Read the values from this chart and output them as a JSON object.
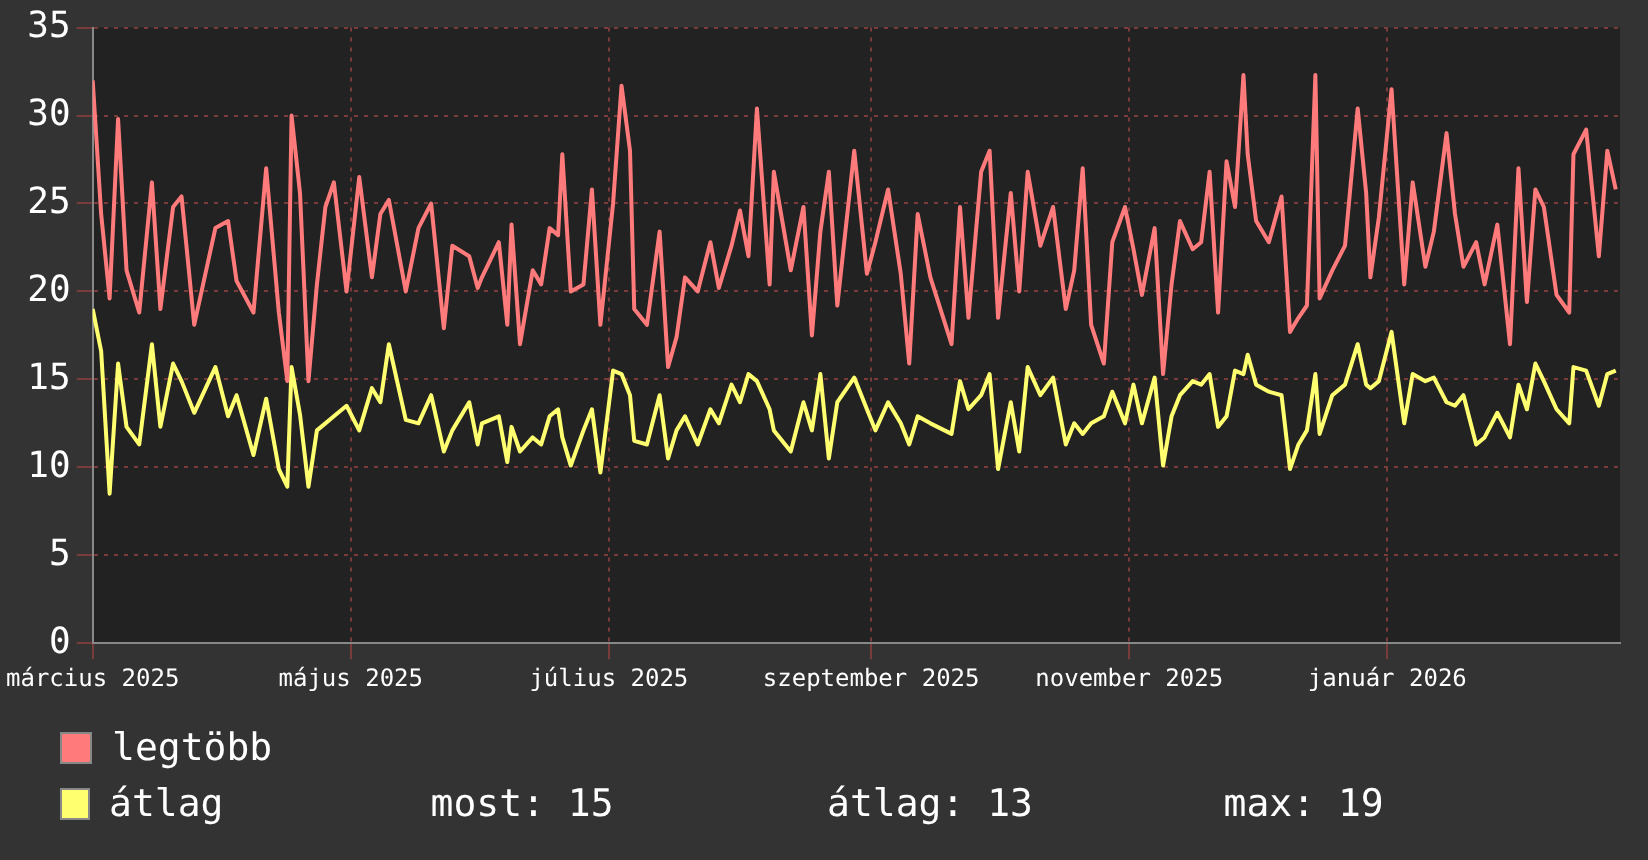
{
  "chart_data": {
    "type": "line",
    "legend": "bottom",
    "grid": true,
    "x": [
      "2025-03-01",
      "2025-03-03",
      "2025-03-05",
      "2025-03-07",
      "2025-03-09",
      "2025-03-12",
      "2025-03-15",
      "2025-03-17",
      "2025-03-20",
      "2025-03-22",
      "2025-03-25",
      "2025-03-30",
      "2025-04-02",
      "2025-04-04",
      "2025-04-08",
      "2025-04-11",
      "2025-04-14",
      "2025-04-16",
      "2025-04-17",
      "2025-04-19",
      "2025-04-21",
      "2025-04-23",
      "2025-04-25",
      "2025-04-27",
      "2025-04-30",
      "2025-05-03",
      "2025-05-06",
      "2025-05-08",
      "2025-05-10",
      "2025-05-14",
      "2025-05-17",
      "2025-05-20",
      "2025-05-23",
      "2025-05-25",
      "2025-05-29",
      "2025-05-31",
      "2025-06-01",
      "2025-06-05",
      "2025-06-07",
      "2025-06-08",
      "2025-06-10",
      "2025-06-13",
      "2025-06-15",
      "2025-06-17",
      "2025-06-19",
      "2025-06-20",
      "2025-06-22",
      "2025-06-25",
      "2025-06-27",
      "2025-06-29",
      "2025-07-02",
      "2025-07-04",
      "2025-07-06",
      "2025-07-07",
      "2025-07-10",
      "2025-07-13",
      "2025-07-15",
      "2025-07-17",
      "2025-07-19",
      "2025-07-22",
      "2025-07-25",
      "2025-07-27",
      "2025-07-30",
      "2025-08-01",
      "2025-08-03",
      "2025-08-05",
      "2025-08-08",
      "2025-08-09",
      "2025-08-13",
      "2025-08-16",
      "2025-08-18",
      "2025-08-20",
      "2025-08-22",
      "2025-08-24",
      "2025-08-28",
      "2025-08-31",
      "2025-09-02",
      "2025-09-05",
      "2025-09-08",
      "2025-09-10",
      "2025-09-12",
      "2025-09-15",
      "2025-09-20",
      "2025-09-22",
      "2025-09-24",
      "2025-09-27",
      "2025-09-29",
      "2025-10-01",
      "2025-10-04",
      "2025-10-06",
      "2025-10-08",
      "2025-10-11",
      "2025-10-14",
      "2025-10-17",
      "2025-10-19",
      "2025-10-21",
      "2025-10-23",
      "2025-10-26",
      "2025-10-28",
      "2025-10-31",
      "2025-11-02",
      "2025-11-04",
      "2025-11-07",
      "2025-11-09",
      "2025-11-11",
      "2025-11-13",
      "2025-11-16",
      "2025-11-18",
      "2025-11-20",
      "2025-11-22",
      "2025-11-24",
      "2025-11-26",
      "2025-11-28",
      "2025-11-29",
      "2025-12-01",
      "2025-12-04",
      "2025-12-07",
      "2025-12-09",
      "2025-12-11",
      "2025-12-13",
      "2025-12-15",
      "2025-12-16",
      "2025-12-19",
      "2025-12-22",
      "2025-12-25",
      "2025-12-27",
      "2025-12-28",
      "2025-12-30",
      "2026-01-02",
      "2026-01-05",
      "2026-01-07",
      "2026-01-10",
      "2026-01-12",
      "2026-01-15",
      "2026-01-17",
      "2026-01-19",
      "2026-01-22",
      "2026-01-24",
      "2026-01-27",
      "2026-01-30",
      "2026-02-01",
      "2026-02-03",
      "2026-02-05",
      "2026-02-07",
      "2026-02-10",
      "2026-02-13",
      "2026-02-14",
      "2026-02-17",
      "2026-02-20",
      "2026-02-22",
      "2026-02-24"
    ],
    "series": [
      {
        "name": "legtöbb",
        "color": "#ff7b7b",
        "values": [
          32,
          24.4,
          19.6,
          29.8,
          21.2,
          18.8,
          26.2,
          19,
          24.8,
          25.4,
          18.1,
          23.6,
          24,
          20.6,
          18.8,
          27,
          18.8,
          14.9,
          30,
          25.6,
          14.9,
          20.4,
          24.8,
          26.2,
          20,
          26.5,
          20.8,
          24.4,
          25.2,
          20,
          23.6,
          25,
          17.9,
          22.6,
          22,
          20.2,
          20.8,
          22.8,
          18.1,
          23.8,
          17,
          21.2,
          20.4,
          23.6,
          23.2,
          27.8,
          20,
          20.4,
          25.8,
          18.1,
          25,
          31.7,
          28,
          19,
          18.1,
          23.4,
          15.7,
          17.4,
          20.8,
          20,
          22.8,
          20.2,
          22.6,
          24.6,
          22,
          30.4,
          20.4,
          26.8,
          21.2,
          24.8,
          17.5,
          23.4,
          26.8,
          19.2,
          28,
          21,
          22.8,
          25.8,
          21,
          15.9,
          24.4,
          20.8,
          17,
          24.8,
          18.5,
          26.8,
          28,
          18.5,
          25.6,
          20,
          26.8,
          22.6,
          24.8,
          19,
          21.2,
          27,
          18.1,
          15.9,
          22.8,
          24.8,
          22.4,
          19.8,
          23.6,
          15.3,
          20.4,
          24,
          22.4,
          22.8,
          26.8,
          18.8,
          27.4,
          24.8,
          32.3,
          27.8,
          24,
          22.8,
          25.4,
          17.7,
          18.5,
          19.2,
          32.3,
          19.6,
          21.2,
          22.6,
          30.4,
          25.6,
          20.8,
          24.2,
          31.5,
          20.4,
          26.2,
          21.4,
          23.4,
          29,
          24.4,
          21.4,
          22.8,
          20.4,
          23.8,
          17,
          27,
          19.4,
          25.8,
          24.8,
          19.8,
          18.8,
          27.8,
          29.2,
          22,
          28,
          25.8
        ]
      },
      {
        "name": "átlag",
        "color": "#ffff70",
        "values": [
          19,
          16.6,
          8.5,
          15.9,
          12.3,
          11.3,
          17,
          12.3,
          15.9,
          14.9,
          13.1,
          15.7,
          12.9,
          14.1,
          10.7,
          13.9,
          9.9,
          8.9,
          15.7,
          13,
          8.9,
          12.1,
          12.5,
          12.9,
          13.5,
          12.1,
          14.5,
          13.7,
          17,
          12.7,
          12.5,
          14.1,
          10.9,
          12.1,
          13.7,
          11.3,
          12.5,
          12.9,
          10.3,
          12.3,
          10.9,
          11.7,
          11.3,
          12.9,
          13.3,
          11.7,
          10.1,
          12.1,
          13.3,
          9.7,
          15.5,
          15.3,
          14.1,
          11.5,
          11.3,
          14.1,
          10.5,
          12.1,
          12.9,
          11.3,
          13.3,
          12.5,
          14.7,
          13.7,
          15.3,
          14.9,
          13.3,
          12.1,
          10.9,
          13.7,
          12.1,
          15.3,
          10.5,
          13.7,
          15.1,
          13.3,
          12.1,
          13.7,
          12.5,
          11.3,
          12.9,
          12.5,
          11.9,
          14.9,
          13.3,
          14.1,
          15.3,
          9.9,
          13.7,
          10.9,
          15.7,
          14.1,
          15.1,
          11.3,
          12.5,
          11.9,
          12.5,
          12.9,
          14.3,
          12.5,
          14.7,
          12.5,
          15.1,
          10.1,
          12.9,
          14.1,
          14.9,
          14.7,
          15.3,
          12.3,
          12.9,
          15.5,
          15.3,
          16.4,
          14.7,
          14.3,
          14.1,
          9.9,
          11.3,
          12.1,
          15.3,
          11.9,
          14.1,
          14.7,
          17,
          14.7,
          14.5,
          14.9,
          17.7,
          12.5,
          15.3,
          14.9,
          15.1,
          13.7,
          13.5,
          14.1,
          11.3,
          11.7,
          13.1,
          11.7,
          14.7,
          13.3,
          15.9,
          14.9,
          13.3,
          12.5,
          15.7,
          15.5,
          13.5,
          15.3,
          15.5
        ]
      }
    ],
    "xlim": [
      "2025-03-01",
      "2026-02-25"
    ],
    "xticks": [
      {
        "value": "2025-03-01",
        "label": "március 2025"
      },
      {
        "value": "2025-05-01",
        "label": "május 2025"
      },
      {
        "value": "2025-07-01",
        "label": "július 2025"
      },
      {
        "value": "2025-09-01",
        "label": "szeptember 2025"
      },
      {
        "value": "2025-11-01",
        "label": "november 2025"
      },
      {
        "value": "2026-01-01",
        "label": "január 2026"
      }
    ],
    "ylim": [
      0,
      35
    ],
    "yticks": [
      0,
      5,
      10,
      15,
      20,
      25,
      30,
      35
    ],
    "annotations": [
      "most: 15",
      "átlag: 13",
      "max: 19"
    ]
  }
}
